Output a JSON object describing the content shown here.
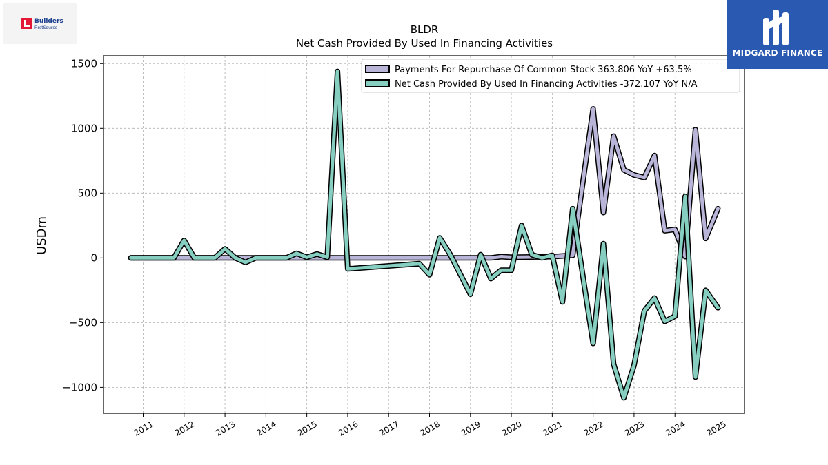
{
  "logos": {
    "left": {
      "line1": "Builders",
      "line2": "FirstSource",
      "accent": "#e31837",
      "text_color": "#1b3f8f"
    },
    "right": {
      "brand": "MIDGARD FINANCE",
      "background": "#2a59b2"
    }
  },
  "chart_data": {
    "type": "line",
    "title": "BLDR",
    "subtitle": "Net Cash Provided By Used In Financing Activities",
    "ylabel": "USDm",
    "xlabel": "",
    "ylim": [
      -1200,
      1560
    ],
    "xlim": [
      2010.03,
      2025.7
    ],
    "yticks": [
      -1000,
      -500,
      0,
      500,
      1000,
      1500
    ],
    "ytick_labels": [
      "−1000",
      "−500",
      "0",
      "500",
      "1000",
      "1500"
    ],
    "xticks": [
      2011,
      2012,
      2013,
      2014,
      2015,
      2016,
      2017,
      2018,
      2019,
      2020,
      2021,
      2022,
      2023,
      2024,
      2025
    ],
    "grid": true,
    "legend_position": "top-right",
    "series": [
      {
        "name": "Payments For Repurchase Of Common Stock",
        "legend_label": "Payments For Repurchase Of Common Stock  363.806 YoY +63.5%",
        "color": "#b9b5d8",
        "x": [
          2010.7,
          2011.75,
          2013.25,
          2015.75,
          2016.0,
          2018.0,
          2019.5,
          2019.75,
          2020.0,
          2021.0,
          2021.5,
          2022.0,
          2022.25,
          2022.5,
          2022.75,
          2023.0,
          2023.25,
          2023.5,
          2023.75,
          2024.0,
          2024.25,
          2024.5,
          2024.75,
          2025.05
        ],
        "y": [
          0,
          0,
          0,
          0,
          0,
          0,
          0,
          10,
          5,
          10,
          20,
          1150,
          350,
          940,
          680,
          640,
          620,
          790,
          210,
          220,
          10,
          990,
          150,
          380
        ]
      },
      {
        "name": "Net Cash Provided By Used In Financing Activities",
        "legend_label": "Net Cash Provided By Used In Financing Activities  -372.107 YoY N/A",
        "color": "#86cfc0",
        "x": [
          2010.7,
          2011.75,
          2012.0,
          2012.25,
          2012.75,
          2013.0,
          2013.25,
          2013.5,
          2013.75,
          2014.5,
          2014.75,
          2015.0,
          2015.25,
          2015.5,
          2015.75,
          2016.0,
          2017.75,
          2018.0,
          2018.25,
          2018.5,
          2019.0,
          2019.25,
          2019.5,
          2019.75,
          2020.0,
          2020.25,
          2020.5,
          2020.75,
          2021.0,
          2021.25,
          2021.5,
          2022.0,
          2022.25,
          2022.5,
          2022.75,
          2023.0,
          2023.25,
          2023.5,
          2023.75,
          2024.0,
          2024.25,
          2024.5,
          2024.75,
          2025.05
        ],
        "y": [
          0,
          0,
          135,
          0,
          0,
          70,
          0,
          -35,
          0,
          0,
          35,
          5,
          30,
          5,
          1440,
          -85,
          -45,
          -130,
          155,
          30,
          -280,
          25,
          -160,
          -95,
          -95,
          250,
          25,
          0,
          20,
          -340,
          380,
          -660,
          110,
          -820,
          -1080,
          -830,
          -410,
          -310,
          -490,
          -450,
          475,
          -920,
          -250,
          -385
        ]
      }
    ]
  }
}
